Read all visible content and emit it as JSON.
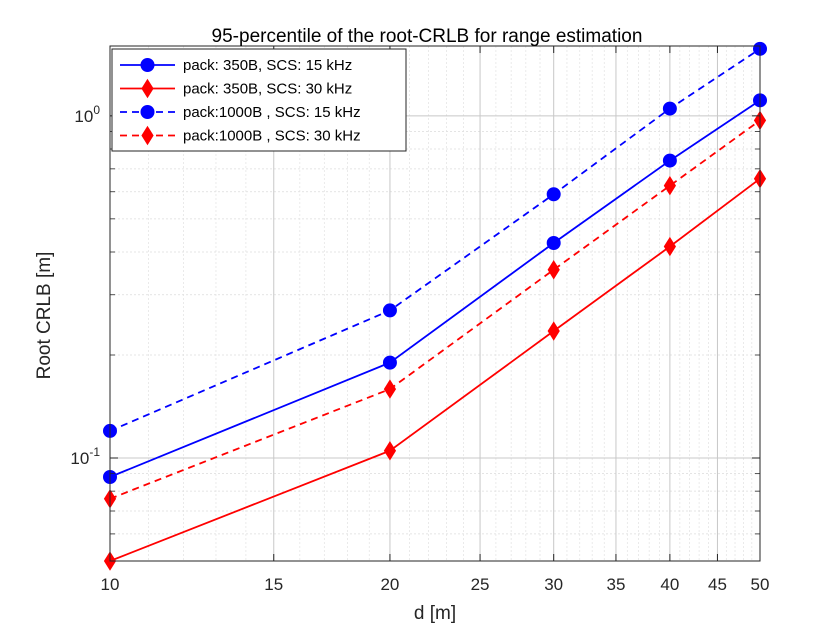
{
  "chart_data": {
    "type": "line",
    "title": "95-percentile of the root-CRLB for range estimation",
    "xlabel": "d [m]",
    "ylabel": "Root CRLB [m]",
    "xscale": "log",
    "yscale": "log",
    "xlim": [
      10,
      50
    ],
    "ylim": [
      0.05,
      1.6
    ],
    "xticks": [
      10,
      15,
      20,
      25,
      30,
      35,
      40,
      45,
      50
    ],
    "xtick_labels": [
      "10",
      "15",
      "20",
      "25",
      "30",
      "35",
      "40",
      "45",
      "50"
    ],
    "yticks": [
      0.1,
      1
    ],
    "ytick_labels": [
      {
        "base": "10",
        "exp": "-1"
      },
      {
        "base": "10",
        "exp": "0"
      }
    ],
    "grid": true,
    "minor_grid": true,
    "legend_position": "top-left",
    "x": [
      10,
      20,
      30,
      40,
      50
    ],
    "series": [
      {
        "name": "pack: 350B, SCS: 15 kHz",
        "values": [
          0.088,
          0.19,
          0.425,
          0.74,
          1.11
        ],
        "color": "#0000ff",
        "line": "solid",
        "marker": "circle"
      },
      {
        "name": "pack: 350B, SCS: 30 kHz",
        "values": [
          0.05,
          0.105,
          0.235,
          0.415,
          0.655
        ],
        "color": "#ff0000",
        "line": "solid",
        "marker": "diamond"
      },
      {
        "name": "pack:1000B , SCS: 15 kHz",
        "values": [
          0.12,
          0.27,
          0.59,
          1.05,
          1.57
        ],
        "color": "#0000ff",
        "line": "dashed",
        "marker": "circle"
      },
      {
        "name": "pack:1000B , SCS: 30 kHz",
        "values": [
          0.076,
          0.159,
          0.355,
          0.625,
          0.97
        ],
        "color": "#ff0000",
        "line": "dashed",
        "marker": "diamond"
      }
    ]
  }
}
